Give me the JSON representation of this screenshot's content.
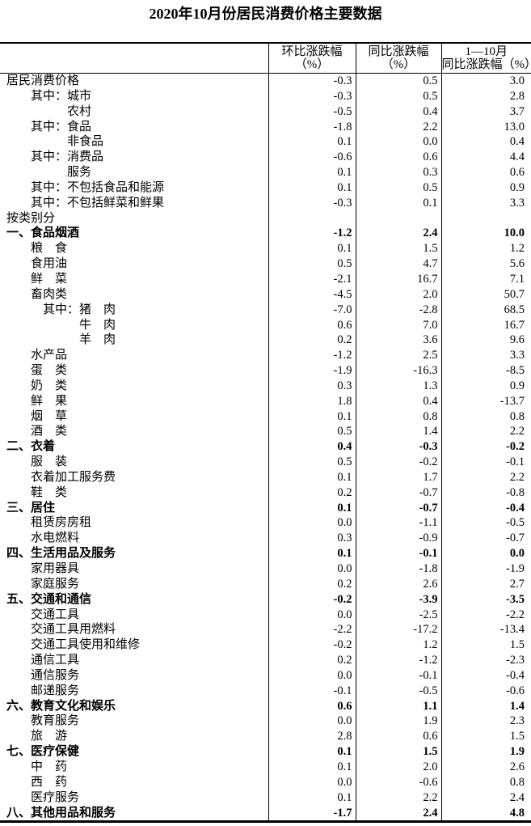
{
  "title": "2020年10月份居民消费价格主要数据",
  "table": {
    "headers": {
      "category": "",
      "mom": {
        "line1": "环比涨跌幅",
        "line2": "（%）"
      },
      "yoy": {
        "line1": "同比涨跌幅",
        "line2": "（%）"
      },
      "ytd": {
        "line1": "1—10月",
        "line2": "同比涨跌幅（%）"
      }
    },
    "rows": [
      {
        "label": "居民消费价格",
        "mom": "-0.3",
        "yoy": "0.5",
        "ytd": "3.0",
        "bold": false
      },
      {
        "label": "　　其中：城市",
        "mom": "-0.3",
        "yoy": "0.5",
        "ytd": "2.8",
        "bold": false
      },
      {
        "label": "　　　　　农村",
        "mom": "-0.5",
        "yoy": "0.4",
        "ytd": "3.7",
        "bold": false
      },
      {
        "label": "　　其中：食品",
        "mom": "-1.8",
        "yoy": "2.2",
        "ytd": "13.0",
        "bold": false
      },
      {
        "label": "　　　　　非食品",
        "mom": "0.1",
        "yoy": "0.0",
        "ytd": "0.4",
        "bold": false
      },
      {
        "label": "　　其中：消费品",
        "mom": "-0.6",
        "yoy": "0.6",
        "ytd": "4.4",
        "bold": false
      },
      {
        "label": "　　　　　服务",
        "mom": "0.1",
        "yoy": "0.3",
        "ytd": "0.6",
        "bold": false
      },
      {
        "label": "　　其中：不包括食品和能源",
        "mom": "0.1",
        "yoy": "0.5",
        "ytd": "0.9",
        "bold": false
      },
      {
        "label": "　　其中：不包括鲜菜和鲜果",
        "mom": "-0.3",
        "yoy": "0.1",
        "ytd": "3.3",
        "bold": false
      },
      {
        "label": "按类别分",
        "mom": "",
        "yoy": "",
        "ytd": "",
        "bold": false
      },
      {
        "label": "一、食品烟酒",
        "mom": "-1.2",
        "yoy": "2.4",
        "ytd": "10.0",
        "bold": true
      },
      {
        "label": "　　粮　食",
        "mom": "0.1",
        "yoy": "1.5",
        "ytd": "1.2",
        "bold": false
      },
      {
        "label": "　　食用油",
        "mom": "0.5",
        "yoy": "4.7",
        "ytd": "5.6",
        "bold": false
      },
      {
        "label": "　　鲜　菜",
        "mom": "-2.1",
        "yoy": "16.7",
        "ytd": "7.1",
        "bold": false
      },
      {
        "label": "　　畜肉类",
        "mom": "-4.5",
        "yoy": "2.0",
        "ytd": "50.7",
        "bold": false
      },
      {
        "label": "　　　其中：猪　肉",
        "mom": "-7.0",
        "yoy": "-2.8",
        "ytd": "68.5",
        "bold": false
      },
      {
        "label": "　　　　　　牛　肉",
        "mom": "0.6",
        "yoy": "7.0",
        "ytd": "16.7",
        "bold": false
      },
      {
        "label": "　　　　　　羊　肉",
        "mom": "0.2",
        "yoy": "3.6",
        "ytd": "9.6",
        "bold": false
      },
      {
        "label": "　　水产品",
        "mom": "-1.2",
        "yoy": "2.5",
        "ytd": "3.3",
        "bold": false
      },
      {
        "label": "　　蛋　类",
        "mom": "-1.9",
        "yoy": "-16.3",
        "ytd": "-8.5",
        "bold": false
      },
      {
        "label": "　　奶　类",
        "mom": "0.3",
        "yoy": "1.3",
        "ytd": "0.9",
        "bold": false
      },
      {
        "label": "　　鲜　果",
        "mom": "1.8",
        "yoy": "0.4",
        "ytd": "-13.7",
        "bold": false
      },
      {
        "label": "　　烟　草",
        "mom": "0.1",
        "yoy": "0.8",
        "ytd": "0.8",
        "bold": false
      },
      {
        "label": "　　酒　类",
        "mom": "0.5",
        "yoy": "1.4",
        "ytd": "2.2",
        "bold": false
      },
      {
        "label": "二、衣着",
        "mom": "0.4",
        "yoy": "-0.3",
        "ytd": "-0.2",
        "bold": true
      },
      {
        "label": "　　服　装",
        "mom": "0.5",
        "yoy": "-0.2",
        "ytd": "-0.1",
        "bold": false
      },
      {
        "label": "　　衣着加工服务费",
        "mom": "0.1",
        "yoy": "1.7",
        "ytd": "2.2",
        "bold": false
      },
      {
        "label": "　　鞋　类",
        "mom": "0.2",
        "yoy": "-0.7",
        "ytd": "-0.8",
        "bold": false
      },
      {
        "label": "三、居住",
        "mom": "0.1",
        "yoy": "-0.7",
        "ytd": "-0.4",
        "bold": true
      },
      {
        "label": "　　租赁房房租",
        "mom": "0.0",
        "yoy": "-1.1",
        "ytd": "-0.5",
        "bold": false
      },
      {
        "label": "　　水电燃料",
        "mom": "0.3",
        "yoy": "-0.9",
        "ytd": "-0.7",
        "bold": false
      },
      {
        "label": "四、生活用品及服务",
        "mom": "0.1",
        "yoy": "-0.1",
        "ytd": "0.0",
        "bold": true
      },
      {
        "label": "　　家用器具",
        "mom": "0.0",
        "yoy": "-1.8",
        "ytd": "-1.9",
        "bold": false
      },
      {
        "label": "　　家庭服务",
        "mom": "0.2",
        "yoy": "2.6",
        "ytd": "2.7",
        "bold": false
      },
      {
        "label": "五、交通和通信",
        "mom": "-0.2",
        "yoy": "-3.9",
        "ytd": "-3.5",
        "bold": true
      },
      {
        "label": "　　交通工具",
        "mom": "0.0",
        "yoy": "-2.5",
        "ytd": "-2.2",
        "bold": false
      },
      {
        "label": "　　交通工具用燃料",
        "mom": "-2.2",
        "yoy": "-17.2",
        "ytd": "-13.4",
        "bold": false
      },
      {
        "label": "　　交通工具使用和维修",
        "mom": "-0.2",
        "yoy": "1.2",
        "ytd": "1.5",
        "bold": false
      },
      {
        "label": "　　通信工具",
        "mom": "0.2",
        "yoy": "-1.2",
        "ytd": "-2.3",
        "bold": false
      },
      {
        "label": "　　通信服务",
        "mom": "0.0",
        "yoy": "-0.1",
        "ytd": "-0.4",
        "bold": false
      },
      {
        "label": "　　邮递服务",
        "mom": "-0.1",
        "yoy": "-0.5",
        "ytd": "-0.6",
        "bold": false
      },
      {
        "label": "六、教育文化和娱乐",
        "mom": "0.6",
        "yoy": "1.1",
        "ytd": "1.4",
        "bold": true
      },
      {
        "label": "　　教育服务",
        "mom": "0.0",
        "yoy": "1.9",
        "ytd": "2.3",
        "bold": false
      },
      {
        "label": "　　旅　游",
        "mom": "2.8",
        "yoy": "0.6",
        "ytd": "1.5",
        "bold": false
      },
      {
        "label": "七、医疗保健",
        "mom": "0.1",
        "yoy": "1.5",
        "ytd": "1.9",
        "bold": true
      },
      {
        "label": "　　中　药",
        "mom": "0.1",
        "yoy": "2.0",
        "ytd": "2.6",
        "bold": false
      },
      {
        "label": "　　西　药",
        "mom": "0.0",
        "yoy": "-0.6",
        "ytd": "0.8",
        "bold": false
      },
      {
        "label": "　　医疗服务",
        "mom": "0.1",
        "yoy": "2.2",
        "ytd": "2.4",
        "bold": false
      },
      {
        "label": "八、其他用品和服务",
        "mom": "-1.7",
        "yoy": "2.4",
        "ytd": "4.8",
        "bold": true
      }
    ]
  }
}
